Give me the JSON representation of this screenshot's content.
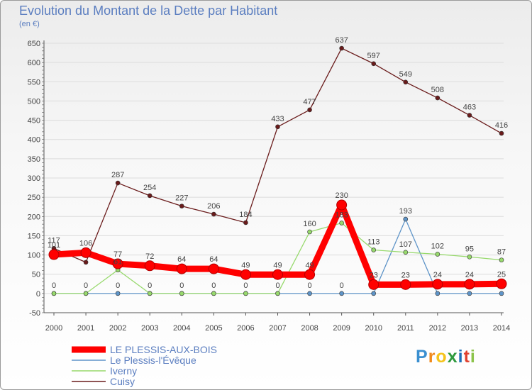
{
  "chart_data": {
    "type": "line",
    "title": "Evolution du Montant de la Dette par Habitant",
    "unit": "(en €)",
    "x": [
      "2000",
      "2001",
      "2002",
      "2003",
      "2004",
      "2005",
      "2006",
      "2007",
      "2008",
      "2009",
      "2010",
      "2011",
      "2012",
      "2013",
      "2014"
    ],
    "ylim": [
      -50,
      650
    ],
    "yticks": [
      -50,
      0,
      50,
      100,
      150,
      200,
      250,
      300,
      350,
      400,
      450,
      500,
      550,
      600,
      650
    ],
    "grid": true,
    "series": [
      {
        "name": "LE PLESSIS-AUX-BOIS",
        "color": "#ff0000",
        "values": [
          101,
          106,
          77,
          72,
          64,
          64,
          49,
          49,
          49,
          230,
          23,
          23,
          24,
          24,
          25
        ]
      },
      {
        "name": "Le Plessis-l'Évêque",
        "color": "#5e94c8",
        "values": [
          0,
          0,
          0,
          0,
          0,
          0,
          0,
          0,
          0,
          0,
          0,
          193,
          0,
          0,
          0
        ]
      },
      {
        "name": "Iverny",
        "color": "#97d96c",
        "values": [
          0,
          0,
          61,
          0,
          0,
          0,
          0,
          0,
          160,
          183,
          113,
          107,
          102,
          95,
          87
        ]
      },
      {
        "name": "Cuisy",
        "color": "#6a1b1b",
        "values": [
          117,
          81,
          287,
          254,
          227,
          206,
          184,
          433,
          477,
          637,
          597,
          549,
          508,
          463,
          416
        ]
      }
    ],
    "data_labels": {
      "LE PLESSIS-AUX-BOIS": [
        "101",
        "106",
        "77",
        "72",
        "64",
        "64",
        "49",
        "49",
        "49",
        "230",
        "23",
        "23",
        "24",
        "24",
        "25"
      ],
      "Le Plessis-l'Évêque": [
        "0",
        "0",
        "0",
        "0",
        "0",
        "0",
        "0",
        "0",
        "0",
        "0",
        "",
        "193",
        "",
        "",
        ""
      ],
      "Iverny": [
        "",
        "",
        "61",
        "",
        "",
        "",
        "",
        "",
        "160",
        "183",
        "113",
        "107",
        "102",
        "95",
        "87"
      ],
      "Cuisy": [
        "117",
        "",
        "287",
        "254",
        "227",
        "206",
        "184",
        "433",
        "477",
        "637",
        "597",
        "549",
        "508",
        "463",
        "416"
      ]
    },
    "legend_position": "bottom-left"
  },
  "logo": {
    "letters": [
      "P",
      "r",
      "o",
      "x",
      "i",
      "t",
      "i"
    ],
    "colors": [
      "#3a8fd0",
      "#f08a1c",
      "#f5c31a",
      "#2f9a3e",
      "#1d6fb8",
      "#e0412f",
      "#8bc34a"
    ]
  }
}
